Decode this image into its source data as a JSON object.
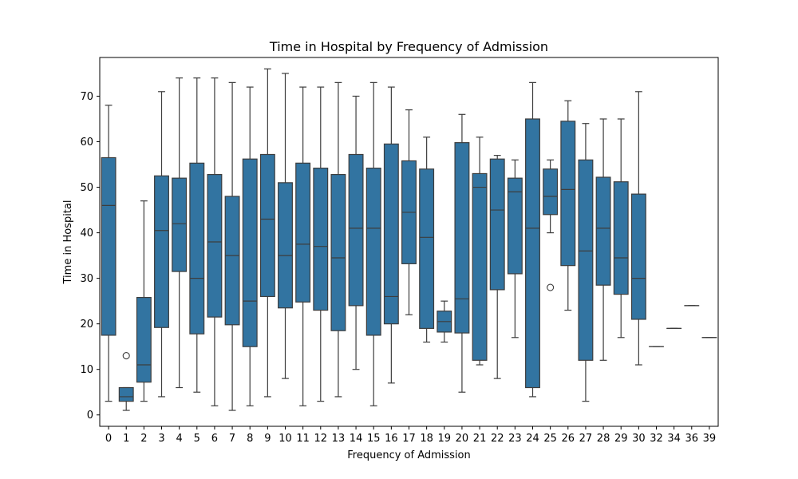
{
  "chart_data": {
    "type": "box",
    "title": "Time in Hospital by Frequency of Admission",
    "xlabel": "Frequency of Admission",
    "ylabel": "Time in Hospital",
    "ylim": [
      -2.5,
      78.5
    ],
    "yticks": [
      0,
      10,
      20,
      30,
      40,
      50,
      60,
      70
    ],
    "grid": false,
    "color": "#3274a1",
    "line_color": "#3d3d3d",
    "categories": [
      "0",
      "1",
      "2",
      "3",
      "4",
      "5",
      "6",
      "7",
      "8",
      "9",
      "10",
      "11",
      "12",
      "13",
      "14",
      "15",
      "16",
      "17",
      "18",
      "19",
      "20",
      "21",
      "22",
      "23",
      "24",
      "25",
      "26",
      "27",
      "28",
      "29",
      "30",
      "32",
      "34",
      "36",
      "39"
    ],
    "boxes": [
      {
        "category": "0",
        "whislo": 3,
        "q1": 17.5,
        "med": 46,
        "q3": 56.5,
        "whishi": 68,
        "fliers": []
      },
      {
        "category": "1",
        "whislo": 1,
        "q1": 3,
        "med": 4,
        "q3": 6,
        "whishi": 6,
        "fliers": [
          13
        ]
      },
      {
        "category": "2",
        "whislo": 3,
        "q1": 7.2,
        "med": 11,
        "q3": 25.8,
        "whishi": 47,
        "fliers": []
      },
      {
        "category": "3",
        "whislo": 4,
        "q1": 19.2,
        "med": 40.5,
        "q3": 52.5,
        "whishi": 71,
        "fliers": []
      },
      {
        "category": "4",
        "whislo": 6,
        "q1": 31.5,
        "med": 42,
        "q3": 52,
        "whishi": 74,
        "fliers": []
      },
      {
        "category": "5",
        "whislo": 5,
        "q1": 17.8,
        "med": 30,
        "q3": 55.3,
        "whishi": 74,
        "fliers": []
      },
      {
        "category": "6",
        "whislo": 2,
        "q1": 21.5,
        "med": 38,
        "q3": 52.8,
        "whishi": 74,
        "fliers": []
      },
      {
        "category": "7",
        "whislo": 1,
        "q1": 19.8,
        "med": 35,
        "q3": 48,
        "whishi": 73,
        "fliers": []
      },
      {
        "category": "8",
        "whislo": 2,
        "q1": 15,
        "med": 25,
        "q3": 56.2,
        "whishi": 72,
        "fliers": []
      },
      {
        "category": "9",
        "whislo": 4,
        "q1": 26,
        "med": 43,
        "q3": 57.2,
        "whishi": 76,
        "fliers": []
      },
      {
        "category": "10",
        "whislo": 8,
        "q1": 23.5,
        "med": 35,
        "q3": 51,
        "whishi": 75,
        "fliers": []
      },
      {
        "category": "11",
        "whislo": 2,
        "q1": 24.8,
        "med": 37.5,
        "q3": 55.3,
        "whishi": 72,
        "fliers": []
      },
      {
        "category": "12",
        "whislo": 3,
        "q1": 23,
        "med": 37,
        "q3": 54.2,
        "whishi": 72,
        "fliers": []
      },
      {
        "category": "13",
        "whislo": 4,
        "q1": 18.5,
        "med": 34.5,
        "q3": 52.8,
        "whishi": 73,
        "fliers": []
      },
      {
        "category": "14",
        "whislo": 10,
        "q1": 24,
        "med": 41,
        "q3": 57.2,
        "whishi": 70,
        "fliers": []
      },
      {
        "category": "15",
        "whislo": 2,
        "q1": 17.5,
        "med": 41,
        "q3": 54.2,
        "whishi": 73,
        "fliers": []
      },
      {
        "category": "16",
        "whislo": 7,
        "q1": 20,
        "med": 26,
        "q3": 59.5,
        "whishi": 72,
        "fliers": []
      },
      {
        "category": "17",
        "whislo": 22,
        "q1": 33.2,
        "med": 44.5,
        "q3": 55.8,
        "whishi": 67,
        "fliers": []
      },
      {
        "category": "18",
        "whislo": 16,
        "q1": 19,
        "med": 39,
        "q3": 54,
        "whishi": 61,
        "fliers": []
      },
      {
        "category": "19",
        "whislo": 16,
        "q1": 18.2,
        "med": 20.5,
        "q3": 22.8,
        "whishi": 25,
        "fliers": []
      },
      {
        "category": "20",
        "whislo": 5,
        "q1": 18,
        "med": 25.5,
        "q3": 59.8,
        "whishi": 66,
        "fliers": []
      },
      {
        "category": "21",
        "whislo": 11,
        "q1": 12,
        "med": 50,
        "q3": 53,
        "whishi": 61,
        "fliers": []
      },
      {
        "category": "22",
        "whislo": 8,
        "q1": 27.5,
        "med": 45,
        "q3": 56.2,
        "whishi": 57,
        "fliers": []
      },
      {
        "category": "23",
        "whislo": 17,
        "q1": 31,
        "med": 49,
        "q3": 52,
        "whishi": 56,
        "fliers": []
      },
      {
        "category": "24",
        "whislo": 4,
        "q1": 6,
        "med": 41,
        "q3": 65,
        "whishi": 73,
        "fliers": []
      },
      {
        "category": "25",
        "whislo": 40,
        "q1": 44,
        "med": 48,
        "q3": 54,
        "whishi": 56,
        "fliers": [
          28
        ]
      },
      {
        "category": "26",
        "whislo": 23,
        "q1": 32.8,
        "med": 49.5,
        "q3": 64.5,
        "whishi": 69,
        "fliers": []
      },
      {
        "category": "27",
        "whislo": 3,
        "q1": 12,
        "med": 36,
        "q3": 56,
        "whishi": 64,
        "fliers": []
      },
      {
        "category": "28",
        "whislo": 12,
        "q1": 28.5,
        "med": 41,
        "q3": 52.2,
        "whishi": 65,
        "fliers": []
      },
      {
        "category": "29",
        "whislo": 17,
        "q1": 26.5,
        "med": 34.5,
        "q3": 51.2,
        "whishi": 65,
        "fliers": []
      },
      {
        "category": "30",
        "whislo": 11,
        "q1": 21,
        "med": 30,
        "q3": 48.5,
        "whishi": 71,
        "fliers": []
      },
      {
        "category": "32",
        "whislo": 15,
        "q1": 15,
        "med": 15,
        "q3": 15,
        "whishi": 15,
        "fliers": []
      },
      {
        "category": "34",
        "whislo": 19,
        "q1": 19,
        "med": 19,
        "q3": 19,
        "whishi": 19,
        "fliers": []
      },
      {
        "category": "36",
        "whislo": 24,
        "q1": 24,
        "med": 24,
        "q3": 24,
        "whishi": 24,
        "fliers": []
      },
      {
        "category": "39",
        "whislo": 17,
        "q1": 17,
        "med": 17,
        "q3": 17,
        "whishi": 17,
        "fliers": []
      }
    ]
  }
}
